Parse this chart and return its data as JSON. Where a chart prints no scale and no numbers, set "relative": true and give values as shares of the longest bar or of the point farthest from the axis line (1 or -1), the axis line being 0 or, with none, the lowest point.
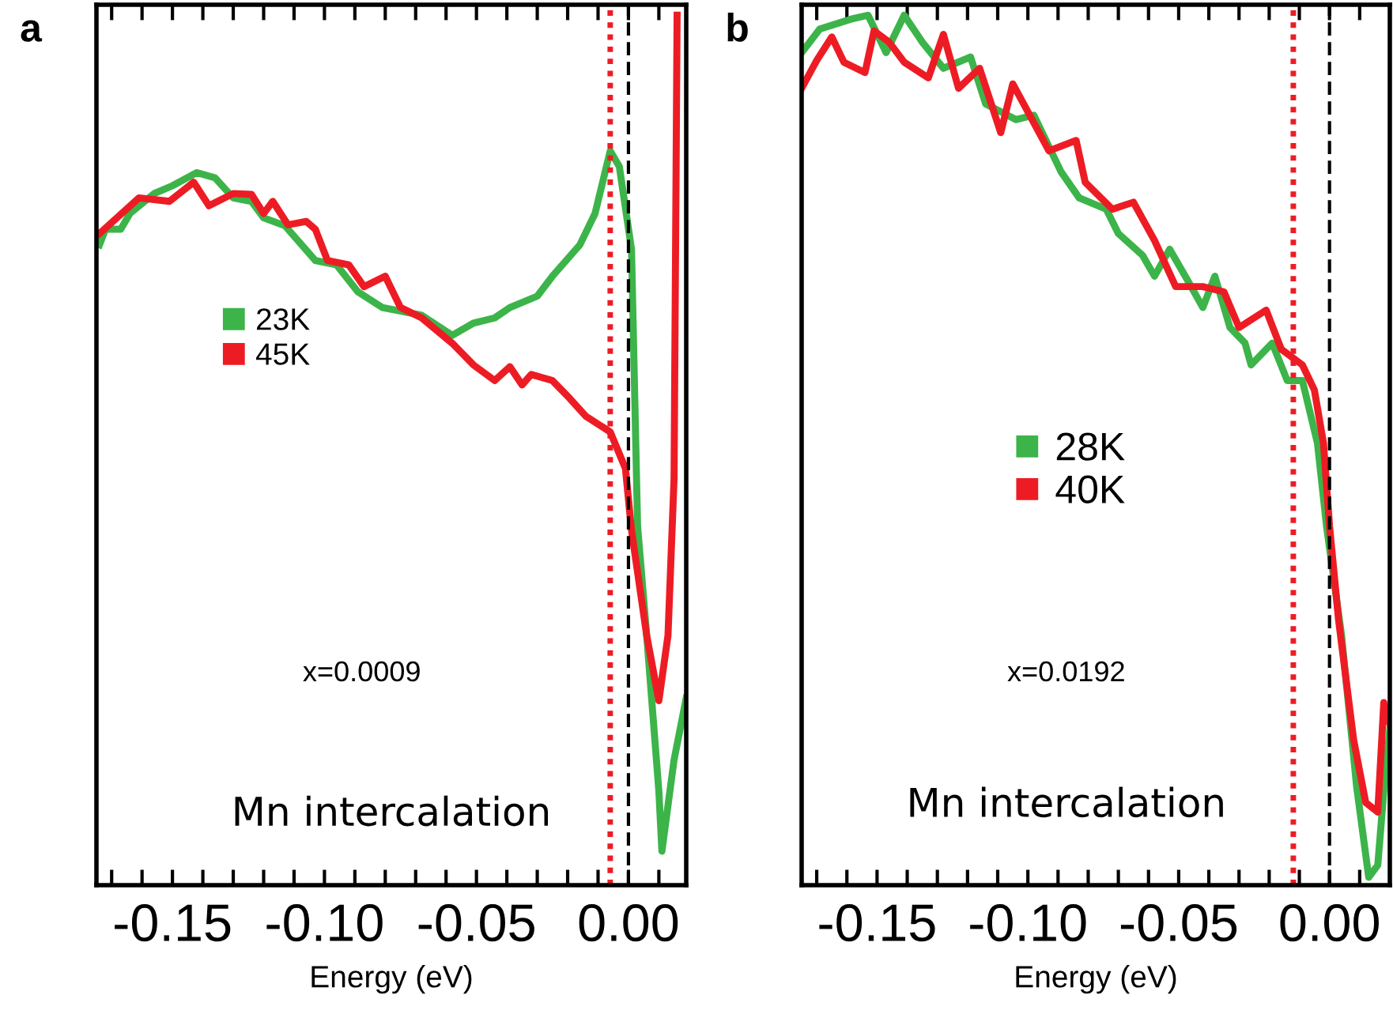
{
  "chart_data": [
    {
      "type": "line",
      "title": "a",
      "xlabel": "Energy (eV)",
      "relative": true,
      "xlim": [
        -0.175,
        0.019
      ],
      "xticks": [
        {
          "value": -0.17,
          "label": null
        },
        {
          "value": -0.16,
          "label": null
        },
        {
          "value": -0.15,
          "label": "-0.15"
        },
        {
          "value": -0.14,
          "label": null
        },
        {
          "value": -0.13,
          "label": null
        },
        {
          "value": -0.12,
          "label": null
        },
        {
          "value": -0.11,
          "label": null
        },
        {
          "value": -0.1,
          "label": "-0.10"
        },
        {
          "value": -0.09,
          "label": null
        },
        {
          "value": -0.08,
          "label": null
        },
        {
          "value": -0.07,
          "label": null
        },
        {
          "value": -0.06,
          "label": null
        },
        {
          "value": -0.05,
          "label": "-0.05"
        },
        {
          "value": -0.04,
          "label": null
        },
        {
          "value": -0.03,
          "label": null
        },
        {
          "value": -0.02,
          "label": null
        },
        {
          "value": -0.01,
          "label": null
        },
        {
          "value": 0,
          "label": "0.00"
        },
        {
          "value": 0.01,
          "label": null
        }
      ],
      "tick_labels": "x",
      "legend": "left",
      "grid": false,
      "series": [
        {
          "name": "23K",
          "color": "#3cb44a",
          "x": [
            -0.174,
            -0.172,
            -0.167,
            -0.164,
            -0.156,
            -0.15,
            -0.142,
            -0.136,
            -0.13,
            -0.124,
            -0.12,
            -0.113,
            -0.103,
            -0.096,
            -0.089,
            -0.081,
            -0.068,
            -0.058,
            -0.051,
            -0.044,
            -0.039,
            -0.03,
            -0.025,
            -0.016,
            -0.011,
            -0.006,
            -0.003,
            0.001,
            0.003,
            0.006,
            0.01,
            0.011,
            0.015,
            0.019
          ],
          "values": [
            0.736,
            0.754,
            0.754,
            0.772,
            0.795,
            0.804,
            0.819,
            0.813,
            0.79,
            0.786,
            0.767,
            0.758,
            0.718,
            0.713,
            0.682,
            0.664,
            0.655,
            0.632,
            0.646,
            0.652,
            0.664,
            0.677,
            0.7,
            0.736,
            0.772,
            0.844,
            0.826,
            0.731,
            0.413,
            0.287,
            0.108,
            0.039,
            0.144,
            0.215
          ]
        },
        {
          "name": "45K",
          "color": "#ed1c24",
          "x": [
            -0.174,
            -0.161,
            -0.151,
            -0.143,
            -0.138,
            -0.13,
            -0.124,
            -0.12,
            -0.117,
            -0.112,
            -0.106,
            -0.103,
            -0.099,
            -0.092,
            -0.087,
            -0.08,
            -0.075,
            -0.068,
            -0.058,
            -0.051,
            -0.044,
            -0.039,
            -0.035,
            -0.032,
            -0.025,
            -0.02,
            -0.014,
            -0.006,
            -0.001,
            0.001,
            0.006,
            0.01,
            0.013,
            0.015,
            0.016
          ],
          "values": [
            0.749,
            0.79,
            0.786,
            0.808,
            0.781,
            0.795,
            0.794,
            0.772,
            0.786,
            0.759,
            0.763,
            0.754,
            0.718,
            0.713,
            0.688,
            0.7,
            0.664,
            0.652,
            0.623,
            0.598,
            0.58,
            0.596,
            0.575,
            0.587,
            0.58,
            0.562,
            0.539,
            0.521,
            0.479,
            0.408,
            0.287,
            0.212,
            0.287,
            0.467,
            1.0
          ]
        }
      ],
      "ref_lines": [
        {
          "axis": "x",
          "value": -0.006,
          "color": "#ed1c24",
          "line_style": "dotted"
        },
        {
          "axis": "x",
          "value": 0,
          "color": "#000000",
          "line_style": "dashed"
        }
      ],
      "annotations": [
        "x=0.0009",
        "Mn intercalation"
      ]
    },
    {
      "type": "line",
      "title": "b",
      "xlabel": "Energy (eV)",
      "relative": true,
      "xlim": [
        -0.175,
        0.02
      ],
      "xticks": [
        {
          "value": -0.17,
          "label": null
        },
        {
          "value": -0.16,
          "label": null
        },
        {
          "value": -0.15,
          "label": "-0.15"
        },
        {
          "value": -0.14,
          "label": null
        },
        {
          "value": -0.13,
          "label": null
        },
        {
          "value": -0.12,
          "label": null
        },
        {
          "value": -0.11,
          "label": null
        },
        {
          "value": -0.1,
          "label": "-0.10"
        },
        {
          "value": -0.09,
          "label": null
        },
        {
          "value": -0.08,
          "label": null
        },
        {
          "value": -0.07,
          "label": null
        },
        {
          "value": -0.06,
          "label": null
        },
        {
          "value": -0.05,
          "label": "-0.05"
        },
        {
          "value": -0.04,
          "label": null
        },
        {
          "value": -0.03,
          "label": null
        },
        {
          "value": -0.02,
          "label": null
        },
        {
          "value": -0.01,
          "label": null
        },
        {
          "value": 0,
          "label": "0.00"
        },
        {
          "value": 0.01,
          "label": null
        }
      ],
      "tick_labels": "x",
      "legend": "center",
      "grid": false,
      "series": [
        {
          "name": "28K",
          "color": "#3cb44a",
          "x": [
            -0.175,
            -0.169,
            -0.158,
            -0.153,
            -0.147,
            -0.141,
            -0.135,
            -0.128,
            -0.119,
            -0.114,
            -0.104,
            -0.098,
            -0.089,
            -0.083,
            -0.074,
            -0.07,
            -0.062,
            -0.058,
            -0.053,
            -0.047,
            -0.042,
            -0.038,
            -0.033,
            -0.028,
            -0.026,
            -0.019,
            -0.014,
            -0.009,
            -0.004,
            -0.001,
            0.004,
            0.009,
            0.013,
            0.016,
            0.018,
            0.02
          ],
          "values": [
            0.957,
            0.984,
            0.996,
            1.0,
            0.957,
            1.0,
            0.969,
            0.939,
            0.952,
            0.898,
            0.88,
            0.885,
            0.82,
            0.79,
            0.777,
            0.749,
            0.724,
            0.7,
            0.731,
            0.695,
            0.664,
            0.7,
            0.641,
            0.623,
            0.598,
            0.623,
            0.58,
            0.58,
            0.508,
            0.413,
            0.287,
            0.113,
            0.009,
            0.023,
            0.108,
            0.18
          ]
        },
        {
          "name": "40K",
          "color": "#ed1c24",
          "x": [
            -0.175,
            -0.17,
            -0.165,
            -0.161,
            -0.154,
            -0.151,
            -0.146,
            -0.141,
            -0.133,
            -0.128,
            -0.123,
            -0.116,
            -0.109,
            -0.105,
            -0.093,
            -0.084,
            -0.081,
            -0.072,
            -0.065,
            -0.058,
            -0.051,
            -0.042,
            -0.035,
            -0.03,
            -0.021,
            -0.016,
            -0.009,
            -0.005,
            -0.002,
            0.0,
            0.003,
            0.008,
            0.012,
            0.016,
            0.018,
            0.02
          ],
          "values": [
            0.916,
            0.948,
            0.975,
            0.946,
            0.934,
            0.982,
            0.969,
            0.946,
            0.928,
            0.978,
            0.916,
            0.939,
            0.865,
            0.921,
            0.844,
            0.856,
            0.808,
            0.777,
            0.785,
            0.741,
            0.688,
            0.688,
            0.682,
            0.641,
            0.661,
            0.616,
            0.598,
            0.569,
            0.508,
            0.413,
            0.305,
            0.167,
            0.095,
            0.084,
            0.21,
            0.185
          ]
        }
      ],
      "ref_lines": [
        {
          "axis": "x",
          "value": -0.012,
          "color": "#ed1c24",
          "line_style": "dotted"
        },
        {
          "axis": "x",
          "value": 0,
          "color": "#000000",
          "line_style": "dashed"
        }
      ],
      "annotations": [
        "x=0.0192",
        "Mn intercalation"
      ]
    }
  ]
}
